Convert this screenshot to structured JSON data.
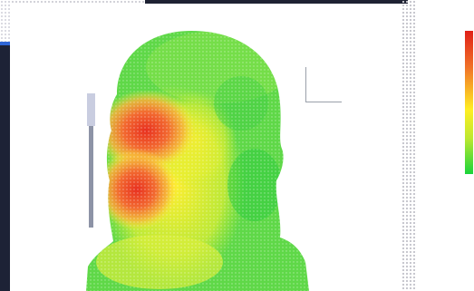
{
  "viewport": {
    "title": "",
    "axes_x_label": "",
    "axes_y_label": ""
  },
  "legend": {
    "title": "",
    "unit": "",
    "ticks": [
      "",
      "",
      "",
      "",
      "",
      "",
      "",
      "",
      ""
    ],
    "bottom_label": "",
    "colors": [
      "#e02018",
      "#f07028",
      "#ffee22",
      "#bde830",
      "#19d43a"
    ]
  }
}
